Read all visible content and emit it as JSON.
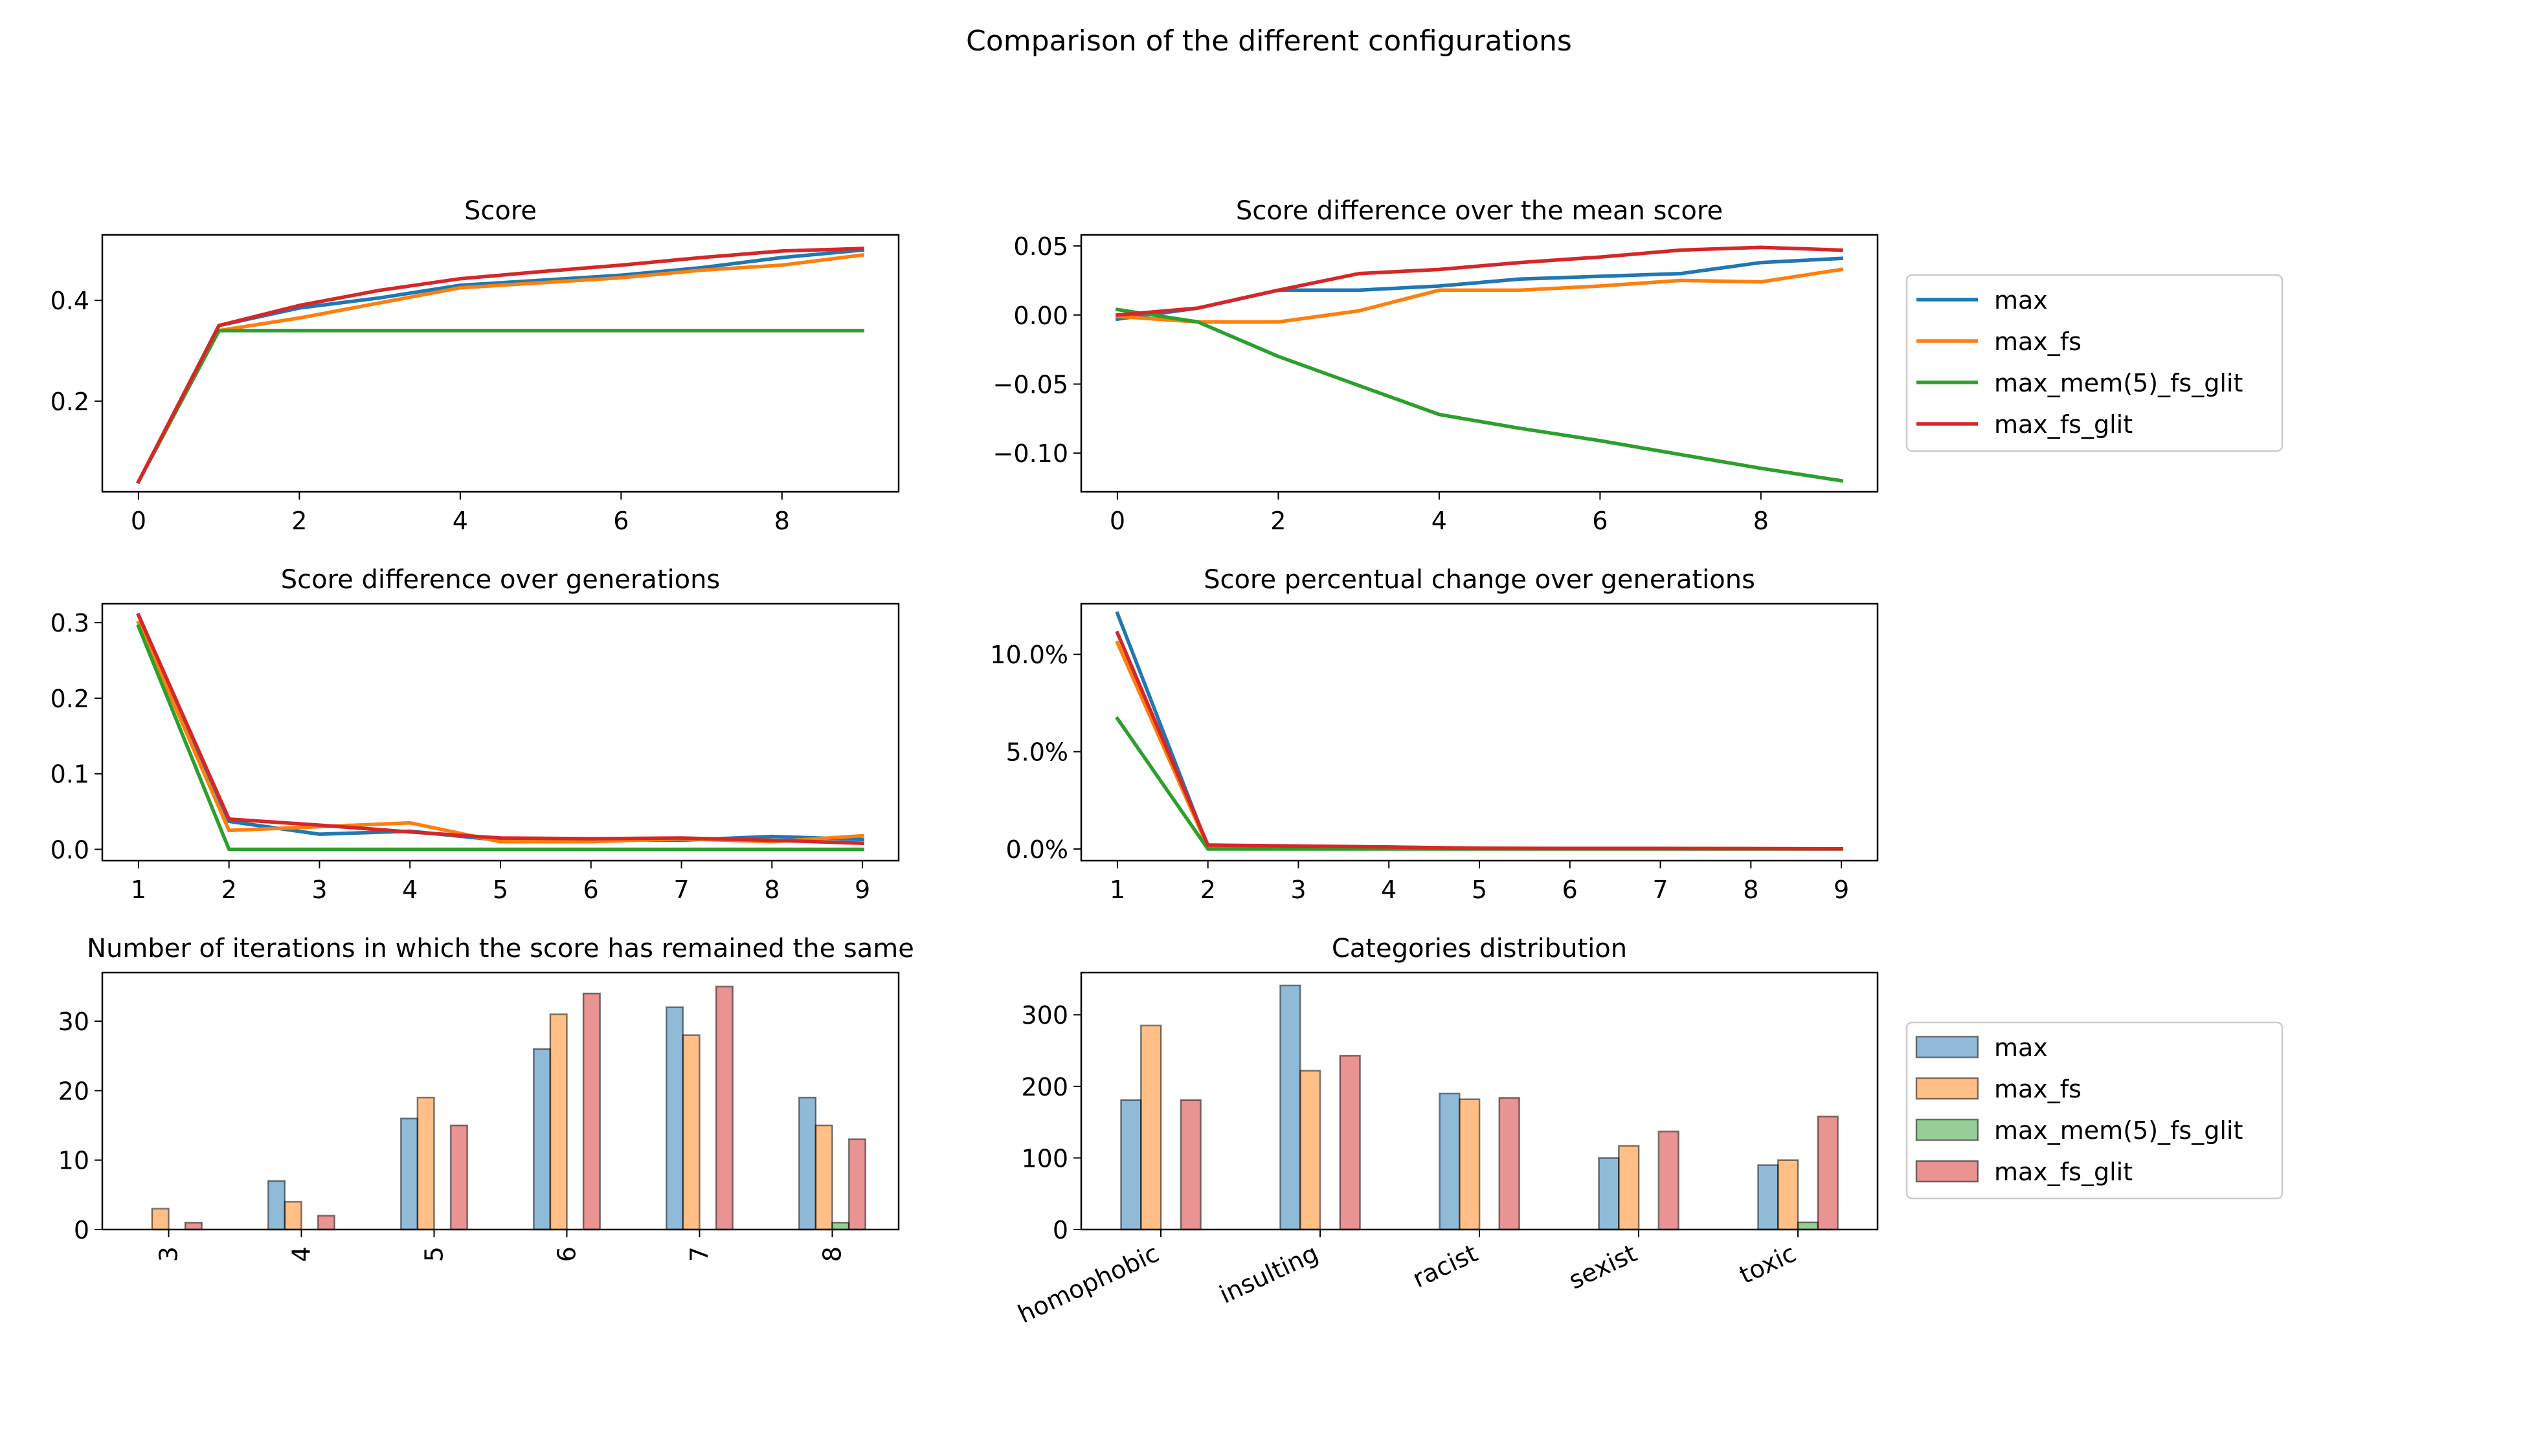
{
  "figure": {
    "suptitle": "Comparison of the different configurations"
  },
  "colors": {
    "max": "#1f77b4",
    "max_fs": "#ff7f0e",
    "max_mem(5)_fs_glit": "#2ca02c",
    "max_fs_glit": "#d62728"
  },
  "legends": {
    "lines": [
      "max",
      "max_fs",
      "max_mem(5)_fs_glit",
      "max_fs_glit"
    ],
    "bars": [
      "max",
      "max_fs",
      "max_mem(5)_fs_glit",
      "max_fs_glit"
    ]
  },
  "chart_data": [
    {
      "id": "score",
      "type": "line",
      "title": "Score",
      "xlabel": "",
      "ylabel": "",
      "xlim": [
        -0.45,
        9.45
      ],
      "ylim": [
        0.02,
        0.53
      ],
      "xticks": [
        0,
        2,
        4,
        6,
        8
      ],
      "xtick_labels": [
        "0",
        "2",
        "4",
        "6",
        "8"
      ],
      "yticks": [
        0.2,
        0.4
      ],
      "ytick_labels": [
        "0.2",
        "0.4"
      ],
      "grid": false,
      "x": [
        0,
        1,
        2,
        3,
        4,
        5,
        6,
        7,
        8,
        9
      ],
      "series": [
        {
          "name": "max",
          "values": [
            0.04,
            0.35,
            0.385,
            0.405,
            0.43,
            0.44,
            0.45,
            0.465,
            0.485,
            0.5
          ]
        },
        {
          "name": "max_fs",
          "values": [
            0.04,
            0.34,
            0.365,
            0.395,
            0.425,
            0.435,
            0.445,
            0.46,
            0.47,
            0.49
          ]
        },
        {
          "name": "max_mem(5)_fs_glit",
          "values": [
            0.04,
            0.34,
            0.34,
            0.34,
            0.34,
            0.34,
            0.34,
            0.34,
            0.34,
            0.34
          ]
        },
        {
          "name": "max_fs_glit",
          "values": [
            0.04,
            0.35,
            0.39,
            0.42,
            0.443,
            0.457,
            0.47,
            0.485,
            0.498,
            0.503
          ]
        }
      ]
    },
    {
      "id": "score_diff_mean",
      "type": "line",
      "title": "Score difference over the mean score",
      "xlabel": "",
      "ylabel": "",
      "xlim": [
        -0.45,
        9.45
      ],
      "ylim": [
        -0.128,
        0.058
      ],
      "xticks": [
        0,
        2,
        4,
        6,
        8
      ],
      "xtick_labels": [
        "0",
        "2",
        "4",
        "6",
        "8"
      ],
      "yticks": [
        -0.1,
        -0.05,
        0.0,
        0.05
      ],
      "ytick_labels": [
        "−0.10",
        "−0.05",
        "0.00",
        "0.05"
      ],
      "grid": false,
      "legend_placement": "outside right",
      "x": [
        0,
        1,
        2,
        3,
        4,
        5,
        6,
        7,
        8,
        9
      ],
      "series": [
        {
          "name": "max",
          "values": [
            -0.003,
            0.005,
            0.018,
            0.018,
            0.021,
            0.026,
            0.028,
            0.03,
            0.038,
            0.041
          ]
        },
        {
          "name": "max_fs",
          "values": [
            -0.001,
            -0.005,
            -0.005,
            0.003,
            0.018,
            0.018,
            0.021,
            0.025,
            0.024,
            0.033
          ]
        },
        {
          "name": "max_mem(5)_fs_glit",
          "values": [
            0.004,
            -0.005,
            -0.03,
            -0.051,
            -0.072,
            -0.082,
            -0.091,
            -0.101,
            -0.111,
            -0.12
          ]
        },
        {
          "name": "max_fs_glit",
          "values": [
            0.0,
            0.005,
            0.018,
            0.03,
            0.033,
            0.038,
            0.042,
            0.047,
            0.049,
            0.047
          ]
        }
      ]
    },
    {
      "id": "score_diff_gen",
      "type": "line",
      "title": "Score difference over generations",
      "xlabel": "",
      "ylabel": "",
      "xlim": [
        0.6,
        9.4
      ],
      "ylim": [
        -0.015,
        0.325
      ],
      "xticks": [
        1,
        2,
        3,
        4,
        5,
        6,
        7,
        8,
        9
      ],
      "xtick_labels": [
        "1",
        "2",
        "3",
        "4",
        "5",
        "6",
        "7",
        "8",
        "9"
      ],
      "yticks": [
        0.0,
        0.1,
        0.2,
        0.3
      ],
      "ytick_labels": [
        "0.0",
        "0.1",
        "0.2",
        "0.3"
      ],
      "grid": false,
      "x": [
        1,
        2,
        3,
        4,
        5,
        6,
        7,
        8,
        9
      ],
      "series": [
        {
          "name": "max",
          "values": [
            0.31,
            0.037,
            0.02,
            0.024,
            0.012,
            0.013,
            0.012,
            0.017,
            0.013
          ]
        },
        {
          "name": "max_fs",
          "values": [
            0.3,
            0.025,
            0.03,
            0.035,
            0.01,
            0.01,
            0.014,
            0.01,
            0.018
          ]
        },
        {
          "name": "max_mem(5)_fs_glit",
          "values": [
            0.295,
            0.0,
            0.0,
            0.0,
            0.0,
            0.0,
            0.0,
            0.0,
            0.0
          ]
        },
        {
          "name": "max_fs_glit",
          "values": [
            0.31,
            0.04,
            0.032,
            0.023,
            0.015,
            0.014,
            0.015,
            0.012,
            0.008
          ]
        }
      ]
    },
    {
      "id": "score_pct_gen",
      "type": "line",
      "title": "Score percentual change over generations",
      "xlabel": "",
      "ylabel": "",
      "xlim": [
        0.6,
        9.4
      ],
      "ylim": [
        -0.006,
        0.126
      ],
      "xticks": [
        1,
        2,
        3,
        4,
        5,
        6,
        7,
        8,
        9
      ],
      "xtick_labels": [
        "1",
        "2",
        "3",
        "4",
        "5",
        "6",
        "7",
        "8",
        "9"
      ],
      "yticks": [
        0.0,
        0.05,
        0.1
      ],
      "ytick_labels": [
        "0.0%",
        "5.0%",
        "10.0%"
      ],
      "grid": false,
      "x": [
        1,
        2,
        3,
        4,
        5,
        6,
        7,
        8,
        9
      ],
      "series": [
        {
          "name": "max",
          "values": [
            0.121,
            0.001,
            0.001,
            0.0005,
            0.0003,
            0.0002,
            0.0002,
            0.0001,
            0.0001
          ]
        },
        {
          "name": "max_fs",
          "values": [
            0.106,
            0.001,
            0.001,
            0.001,
            0.0003,
            0.0002,
            0.0002,
            0.0001,
            0.0001
          ]
        },
        {
          "name": "max_mem(5)_fs_glit",
          "values": [
            0.067,
            0.0,
            0.0,
            0.0,
            0.0,
            0.0,
            0.0,
            0.0,
            0.0
          ]
        },
        {
          "name": "max_fs_glit",
          "values": [
            0.111,
            0.002,
            0.0015,
            0.001,
            0.0004,
            0.0003,
            0.0003,
            0.0002,
            0.0001
          ]
        }
      ]
    },
    {
      "id": "iterations_same",
      "type": "bar",
      "title": "Number of iterations in which the score has remained the same",
      "xlabel": "",
      "ylabel": "",
      "ylim": [
        0,
        37
      ],
      "yticks": [
        0,
        10,
        20,
        30
      ],
      "ytick_labels": [
        "0",
        "10",
        "20",
        "30"
      ],
      "tick_rotation": 90,
      "grid": false,
      "categories": [
        "3",
        "4",
        "5",
        "6",
        "7",
        "8"
      ],
      "series": [
        {
          "name": "max",
          "values": [
            0,
            7,
            16,
            26,
            32,
            19
          ]
        },
        {
          "name": "max_fs",
          "values": [
            3,
            4,
            19,
            31,
            28,
            15
          ]
        },
        {
          "name": "max_mem(5)_fs_glit",
          "values": [
            0,
            0,
            0,
            0,
            0,
            1
          ]
        },
        {
          "name": "max_fs_glit",
          "values": [
            1,
            2,
            15,
            34,
            35,
            13
          ]
        }
      ]
    },
    {
      "id": "categories",
      "type": "bar",
      "title": "Categories distribution",
      "xlabel": "",
      "ylabel": "",
      "ylim": [
        0,
        359
      ],
      "yticks": [
        0,
        100,
        200,
        300
      ],
      "ytick_labels": [
        "0",
        "100",
        "200",
        "300"
      ],
      "tick_rotation": 25,
      "grid": false,
      "legend_placement": "outside right",
      "categories": [
        "homophobic",
        "insulting",
        "racist",
        "sexist",
        "toxic"
      ],
      "series": [
        {
          "name": "max",
          "values": [
            181,
            341,
            190,
            100,
            90
          ]
        },
        {
          "name": "max_fs",
          "values": [
            285,
            222,
            182,
            117,
            97
          ]
        },
        {
          "name": "max_mem(5)_fs_glit",
          "values": [
            0,
            0,
            0,
            0,
            10
          ]
        },
        {
          "name": "max_fs_glit",
          "values": [
            181,
            243,
            184,
            137,
            158
          ]
        }
      ]
    }
  ]
}
